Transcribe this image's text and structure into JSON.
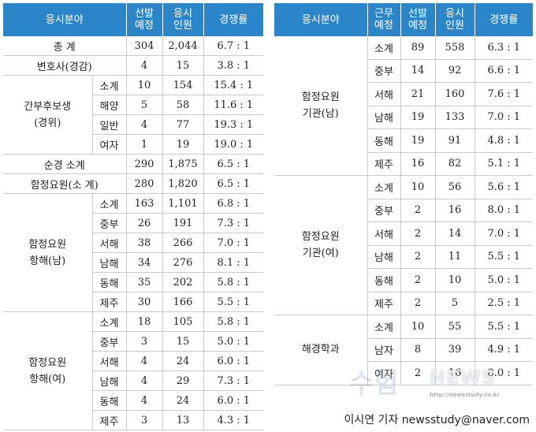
{
  "headers": {
    "field": "응시분야",
    "station_l1": "근무",
    "station_l2": "예정",
    "quota_l1": "선발",
    "quota_l2": "예정",
    "applicants_l1": "응시",
    "applicants_l2": "인원",
    "ratio": "경쟁률"
  },
  "left": {
    "total": {
      "label": "총 계",
      "quota": "304",
      "applicants": "2,044",
      "ratio": "6.7 : 1"
    },
    "lawyer": {
      "label": "변호사(경감)",
      "quota": "4",
      "applicants": "15",
      "ratio": "3.8 : 1"
    },
    "cadet": {
      "label_l1": "간부후보생",
      "label_l2": "(경위)",
      "rows": [
        {
          "sub": "소계",
          "quota": "10",
          "applicants": "154",
          "ratio": "15.4 : 1"
        },
        {
          "sub": "해양",
          "quota": "5",
          "applicants": "58",
          "ratio": "11.6 : 1"
        },
        {
          "sub": "일반",
          "quota": "4",
          "applicants": "77",
          "ratio": "19.3 : 1"
        },
        {
          "sub": "여자",
          "quota": "1",
          "applicants": "19",
          "ratio": "19.0 : 1"
        }
      ]
    },
    "patrol_total": {
      "label": "순경  소계",
      "quota": "290",
      "applicants": "1,875",
      "ratio": "6.5 : 1"
    },
    "crew_total": {
      "label": "함정요원(소 계)",
      "quota": "280",
      "applicants": "1,820",
      "ratio": "6.5 : 1"
    },
    "nav_male": {
      "label_l1": "함정요원",
      "label_l2": "항해(남)",
      "rows": [
        {
          "sub": "소계",
          "quota": "163",
          "applicants": "1,101",
          "ratio": "6.8 : 1"
        },
        {
          "sub": "중부",
          "quota": "26",
          "applicants": "191",
          "ratio": "7.3 : 1"
        },
        {
          "sub": "서해",
          "quota": "38",
          "applicants": "266",
          "ratio": "7.0 : 1"
        },
        {
          "sub": "남해",
          "quota": "34",
          "applicants": "276",
          "ratio": "8.1 : 1"
        },
        {
          "sub": "동해",
          "quota": "35",
          "applicants": "202",
          "ratio": "5.8 : 1"
        },
        {
          "sub": "제주",
          "quota": "30",
          "applicants": "166",
          "ratio": "5.5 : 1"
        }
      ]
    },
    "nav_female": {
      "label_l1": "함정요원",
      "label_l2": "항해(여)",
      "rows": [
        {
          "sub": "소계",
          "quota": "18",
          "applicants": "105",
          "ratio": "5.8 : 1"
        },
        {
          "sub": "중부",
          "quota": "3",
          "applicants": "15",
          "ratio": "5.0 : 1"
        },
        {
          "sub": "서해",
          "quota": "4",
          "applicants": "24",
          "ratio": "6.0 : 1"
        },
        {
          "sub": "남해",
          "quota": "4",
          "applicants": "29",
          "ratio": "7.3 : 1"
        },
        {
          "sub": "동해",
          "quota": "4",
          "applicants": "24",
          "ratio": "6.0 : 1"
        },
        {
          "sub": "제주",
          "quota": "3",
          "applicants": "13",
          "ratio": "4.3 : 1"
        }
      ]
    }
  },
  "right": {
    "eng_male": {
      "label_l1": "함정요원",
      "label_l2": "기관(남)",
      "rows": [
        {
          "sub": "소계",
          "quota": "89",
          "applicants": "558",
          "ratio": "6.3 : 1"
        },
        {
          "sub": "중부",
          "quota": "14",
          "applicants": "92",
          "ratio": "6.6 : 1"
        },
        {
          "sub": "서해",
          "quota": "21",
          "applicants": "160",
          "ratio": "7.6 : 1"
        },
        {
          "sub": "남해",
          "quota": "19",
          "applicants": "133",
          "ratio": "7.0 : 1"
        },
        {
          "sub": "동해",
          "quota": "19",
          "applicants": "91",
          "ratio": "4.8 : 1"
        },
        {
          "sub": "제주",
          "quota": "16",
          "applicants": "82",
          "ratio": "5.1 : 1"
        }
      ]
    },
    "eng_female": {
      "label_l1": "함정요원",
      "label_l2": "기관(여)",
      "rows": [
        {
          "sub": "소계",
          "quota": "10",
          "applicants": "56",
          "ratio": "5.6 : 1"
        },
        {
          "sub": "중부",
          "quota": "2",
          "applicants": "16",
          "ratio": "8.0 : 1"
        },
        {
          "sub": "서해",
          "quota": "2",
          "applicants": "14",
          "ratio": "7.0 : 1"
        },
        {
          "sub": "남해",
          "quota": "2",
          "applicants": "11",
          "ratio": "5.5 : 1"
        },
        {
          "sub": "동해",
          "quota": "2",
          "applicants": "10",
          "ratio": "5.0 : 1"
        },
        {
          "sub": "제주",
          "quota": "2",
          "applicants": "5",
          "ratio": "2.5 : 1"
        }
      ]
    },
    "maritime": {
      "label": "해경학과",
      "rows": [
        {
          "sub": "소계",
          "quota": "10",
          "applicants": "55",
          "ratio": "5.5 : 1"
        },
        {
          "sub": "남자",
          "quota": "8",
          "applicants": "39",
          "ratio": "4.9 : 1"
        },
        {
          "sub": "여자",
          "quota": "2",
          "applicants": "16",
          "ratio": "8.0 : 1"
        }
      ]
    }
  },
  "credit": "이시연 기자 newsstudy@naver.com",
  "watermark": {
    "main": "수험",
    "news": "NEWS",
    "url": "http://newsstudy.co.kr"
  },
  "colors": {
    "header_bg": "#2a86c9",
    "header_text": "#ffffff",
    "grid": "#c9c9c9"
  }
}
